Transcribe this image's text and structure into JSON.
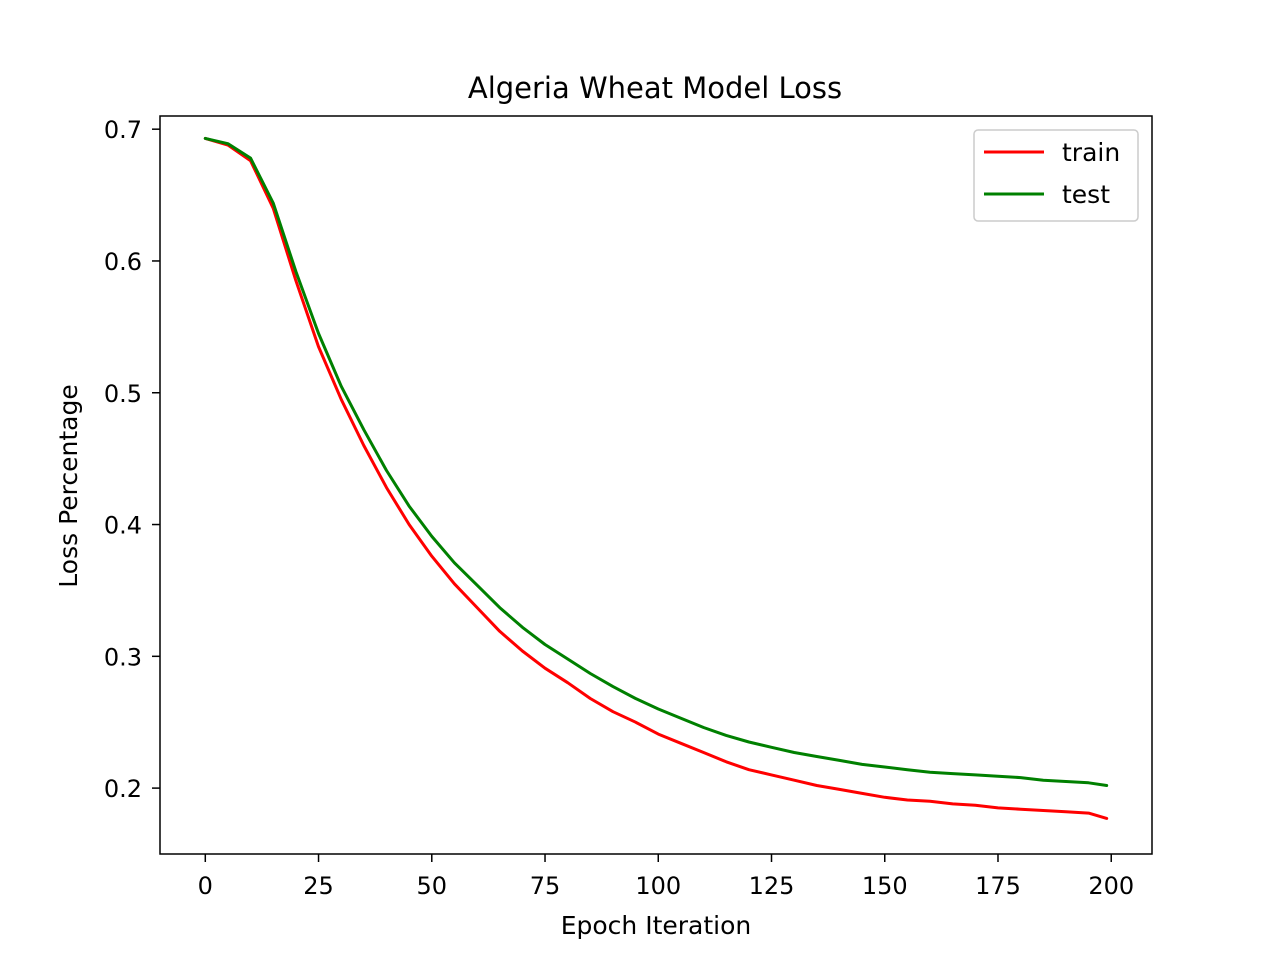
{
  "chart_data": {
    "type": "line",
    "title": "Algeria Wheat Model Loss",
    "xlabel": "Epoch Iteration",
    "ylabel": "Loss Percentage",
    "xlim": [
      -10,
      209
    ],
    "ylim": [
      0.15,
      0.71
    ],
    "xticks": [
      0,
      25,
      50,
      75,
      100,
      125,
      150,
      175,
      200
    ],
    "yticks": [
      0.2,
      0.3,
      0.4,
      0.5,
      0.6,
      0.7
    ],
    "grid": false,
    "legend": {
      "position": "top-right",
      "entries": [
        "train",
        "test"
      ]
    },
    "series": [
      {
        "name": "train",
        "color": "#ff0000",
        "x": [
          0,
          5,
          10,
          15,
          20,
          25,
          30,
          35,
          40,
          45,
          50,
          55,
          60,
          65,
          70,
          75,
          80,
          85,
          90,
          95,
          100,
          105,
          110,
          115,
          120,
          125,
          130,
          135,
          140,
          145,
          150,
          155,
          160,
          165,
          170,
          175,
          180,
          185,
          190,
          195,
          199
        ],
        "values": [
          0.693,
          0.688,
          0.676,
          0.64,
          0.585,
          0.535,
          0.495,
          0.46,
          0.428,
          0.4,
          0.376,
          0.355,
          0.337,
          0.319,
          0.304,
          0.291,
          0.28,
          0.268,
          0.258,
          0.25,
          0.241,
          0.234,
          0.227,
          0.22,
          0.214,
          0.21,
          0.206,
          0.202,
          0.199,
          0.196,
          0.193,
          0.191,
          0.19,
          0.188,
          0.187,
          0.185,
          0.184,
          0.183,
          0.182,
          0.181,
          0.177
        ]
      },
      {
        "name": "test",
        "color": "#008000",
        "x": [
          0,
          5,
          10,
          15,
          20,
          25,
          30,
          35,
          40,
          45,
          50,
          55,
          60,
          65,
          70,
          75,
          80,
          85,
          90,
          95,
          100,
          105,
          110,
          115,
          120,
          125,
          130,
          135,
          140,
          145,
          150,
          155,
          160,
          165,
          170,
          175,
          180,
          185,
          190,
          195,
          199
        ],
        "values": [
          0.693,
          0.689,
          0.678,
          0.644,
          0.592,
          0.545,
          0.505,
          0.472,
          0.441,
          0.414,
          0.391,
          0.371,
          0.354,
          0.337,
          0.322,
          0.309,
          0.298,
          0.287,
          0.277,
          0.268,
          0.26,
          0.253,
          0.246,
          0.24,
          0.235,
          0.231,
          0.227,
          0.224,
          0.221,
          0.218,
          0.216,
          0.214,
          0.212,
          0.211,
          0.21,
          0.209,
          0.208,
          0.206,
          0.205,
          0.204,
          0.202
        ]
      }
    ]
  }
}
